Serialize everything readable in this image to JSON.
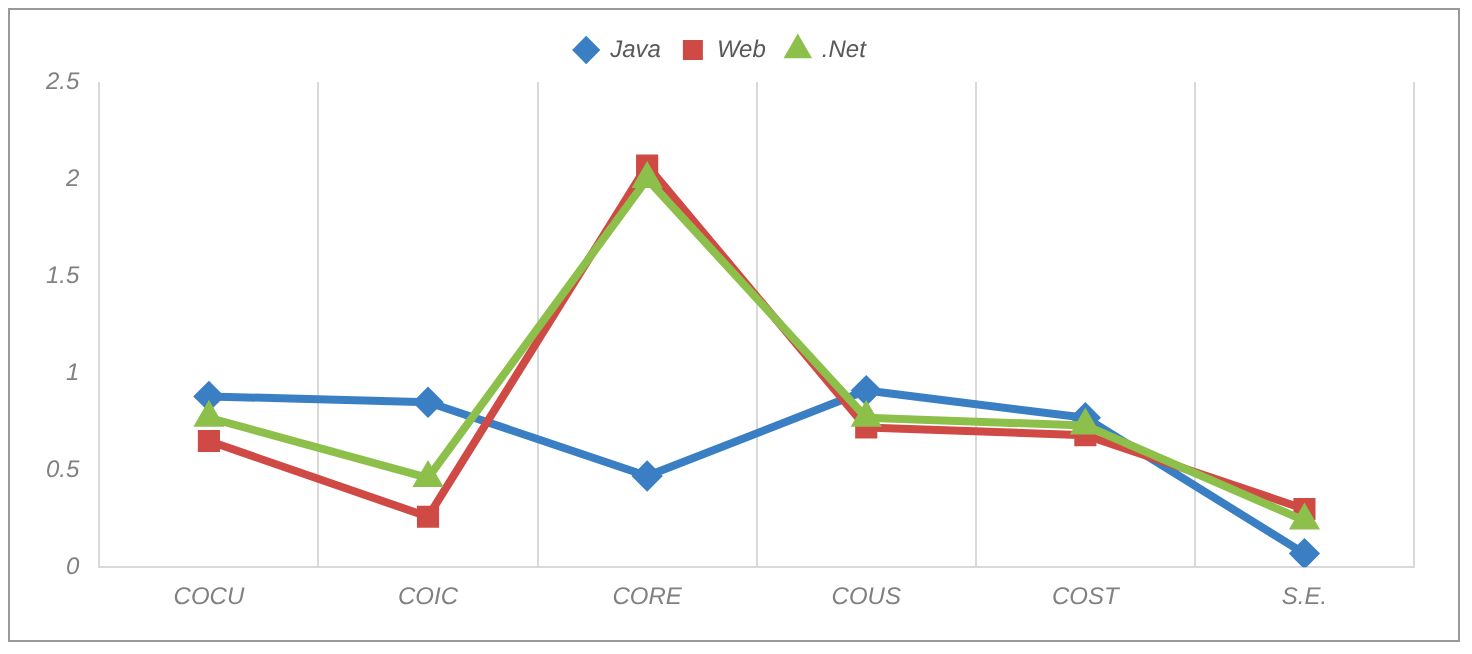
{
  "chart_data": {
    "type": "line",
    "categories": [
      "COCU",
      "COIC",
      "CORE",
      "COUS",
      "COST",
      "S.E."
    ],
    "series": [
      {
        "name": "Java",
        "color": "#3a7fc4",
        "values": [
          0.88,
          0.85,
          0.47,
          0.91,
          0.77,
          0.07
        ],
        "marker": "diamond"
      },
      {
        "name": "Web",
        "color": "#d04a45",
        "values": [
          0.65,
          0.26,
          2.07,
          0.72,
          0.68,
          0.3
        ],
        "marker": "square"
      },
      {
        "name": ".Net",
        "color": "#8dc04a",
        "values": [
          0.77,
          0.46,
          2.0,
          0.77,
          0.73,
          0.24
        ],
        "marker": "triangle"
      }
    ],
    "ylim": [
      0,
      2.5
    ],
    "yticks": [
      0,
      0.5,
      1,
      1.5,
      2,
      2.5
    ],
    "grid": "x",
    "legend": "top"
  }
}
